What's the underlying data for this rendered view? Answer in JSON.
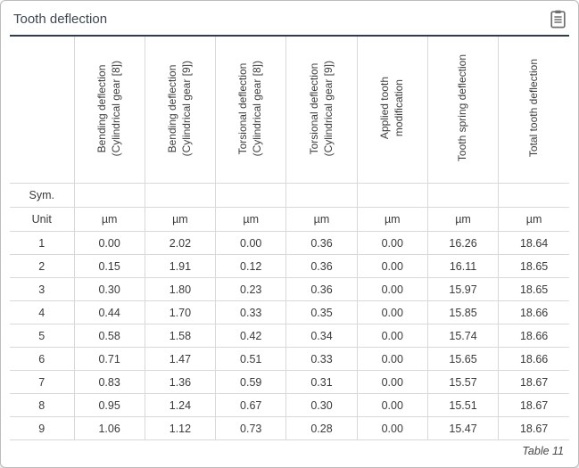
{
  "title": "Tooth deflection",
  "toolbar": {
    "copy_button_icon": "clipboard-icon"
  },
  "colors": {
    "divider": "#2e3c4e",
    "gridline": "#d9d9d9",
    "text": "#3a3a3a",
    "icon": "#6e6e6e",
    "panel_border": "#bcbcbc"
  },
  "table": {
    "sym_label": "Sym.",
    "unit_label": "Unit",
    "columns": [
      {
        "lines": [
          "Bending deflection",
          "(Cylindrical gear [8])"
        ]
      },
      {
        "lines": [
          "Bending deflection",
          "(Cylindrical gear [9])"
        ]
      },
      {
        "lines": [
          "Torsional deflection",
          "(Cylindrical gear [8])"
        ]
      },
      {
        "lines": [
          "Torsional deflection",
          "(Cylindrical gear [9])"
        ]
      },
      {
        "lines": [
          "Applied tooth",
          "modification"
        ]
      },
      {
        "lines": [
          "Tooth spring deflection"
        ]
      },
      {
        "lines": [
          "Total tooth deflection"
        ]
      }
    ],
    "units": [
      "µm",
      "µm",
      "µm",
      "µm",
      "µm",
      "µm",
      "µm"
    ],
    "rows": [
      {
        "label": "1",
        "values": [
          "0.00",
          "2.02",
          "0.00",
          "0.36",
          "0.00",
          "16.26",
          "18.64"
        ]
      },
      {
        "label": "2",
        "values": [
          "0.15",
          "1.91",
          "0.12",
          "0.36",
          "0.00",
          "16.11",
          "18.65"
        ]
      },
      {
        "label": "3",
        "values": [
          "0.30",
          "1.80",
          "0.23",
          "0.36",
          "0.00",
          "15.97",
          "18.65"
        ]
      },
      {
        "label": "4",
        "values": [
          "0.44",
          "1.70",
          "0.33",
          "0.35",
          "0.00",
          "15.85",
          "18.66"
        ]
      },
      {
        "label": "5",
        "values": [
          "0.58",
          "1.58",
          "0.42",
          "0.34",
          "0.00",
          "15.74",
          "18.66"
        ]
      },
      {
        "label": "6",
        "values": [
          "0.71",
          "1.47",
          "0.51",
          "0.33",
          "0.00",
          "15.65",
          "18.66"
        ]
      },
      {
        "label": "7",
        "values": [
          "0.83",
          "1.36",
          "0.59",
          "0.31",
          "0.00",
          "15.57",
          "18.67"
        ]
      },
      {
        "label": "8",
        "values": [
          "0.95",
          "1.24",
          "0.67",
          "0.30",
          "0.00",
          "15.51",
          "18.67"
        ]
      },
      {
        "label": "9",
        "values": [
          "1.06",
          "1.12",
          "0.73",
          "0.28",
          "0.00",
          "15.47",
          "18.67"
        ]
      }
    ]
  },
  "footer": {
    "caption": "Table 11"
  }
}
